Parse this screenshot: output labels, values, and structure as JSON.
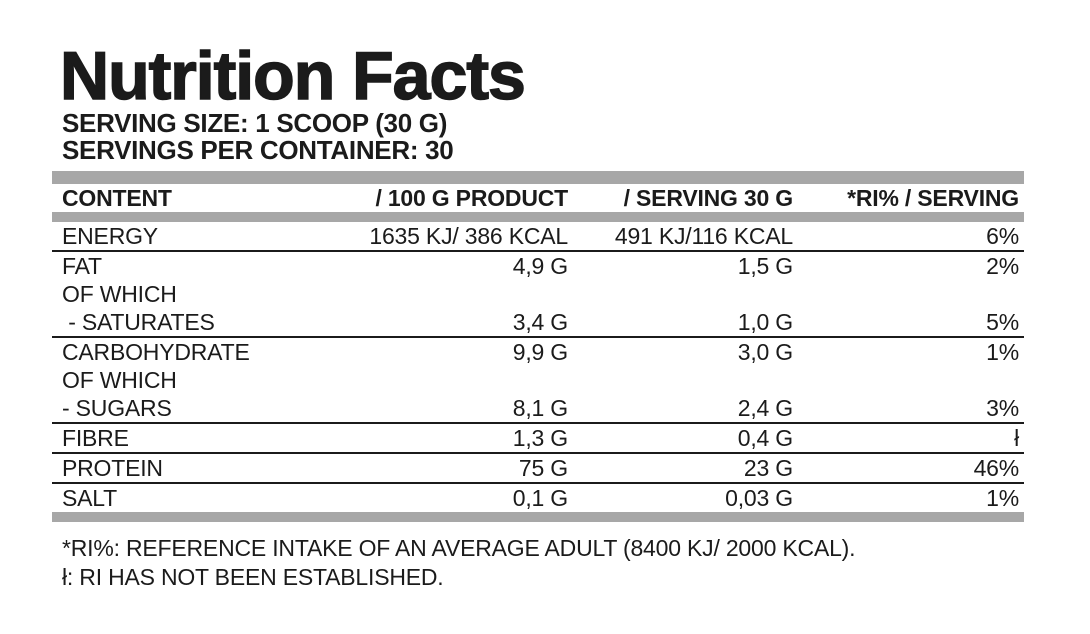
{
  "title": "Nutrition Facts",
  "serving": {
    "size_line": "SERVING SIZE: 1 SCOOP (30 G)",
    "per_container_line": "SERVINGS PER CONTAINER: 30"
  },
  "table": {
    "headers": [
      "CONTENT",
      "/ 100 G PRODUCT",
      "/ SERVING 30 G",
      "*RI% / SERVING"
    ],
    "rows": [
      {
        "label": "ENERGY",
        "per_100g": "1635 KJ/ 386 KCAL",
        "per_serving": "491 KJ/116 KCAL",
        "ri_percent": "6%"
      },
      {
        "label": "FAT",
        "per_100g": "4,9 G",
        "per_serving": "1,5 G",
        "ri_percent": "2%"
      },
      {
        "label": "OF WHICH",
        "per_100g": "",
        "per_serving": "",
        "ri_percent": ""
      },
      {
        "label": " - SATURATES",
        "per_100g": "3,4 G",
        "per_serving": "1,0 G",
        "ri_percent": "5%"
      },
      {
        "label": "CARBOHYDRATE",
        "per_100g": "9,9 G",
        "per_serving": "3,0 G",
        "ri_percent": "1%"
      },
      {
        "label": "OF WHICH",
        "per_100g": "",
        "per_serving": "",
        "ri_percent": ""
      },
      {
        "label": "- SUGARS",
        "per_100g": "8,1 G",
        "per_serving": "2,4 G",
        "ri_percent": "3%"
      },
      {
        "label": "FIBRE",
        "per_100g": "1,3 G",
        "per_serving": "0,4 G",
        "ri_percent": "ł"
      },
      {
        "label": "PROTEIN",
        "per_100g": "75 G",
        "per_serving": "23 G",
        "ri_percent": "46%"
      },
      {
        "label": "SALT",
        "per_100g": "0,1 G",
        "per_serving": "0,03 G",
        "ri_percent": "1%"
      }
    ]
  },
  "footnotes": {
    "ri_definition": "*RI%: REFERENCE INTAKE OF AN AVERAGE ADULT (8400 KJ/ 2000 KCAL).",
    "ri_not_established": "ł: RI HAS NOT BEEN ESTABLISHED."
  },
  "colors": {
    "text": "#1b1b1b",
    "divider_bar_gray": "#a7a7a7",
    "separator_line": "#1b1b1b",
    "background": "#ffffff"
  }
}
